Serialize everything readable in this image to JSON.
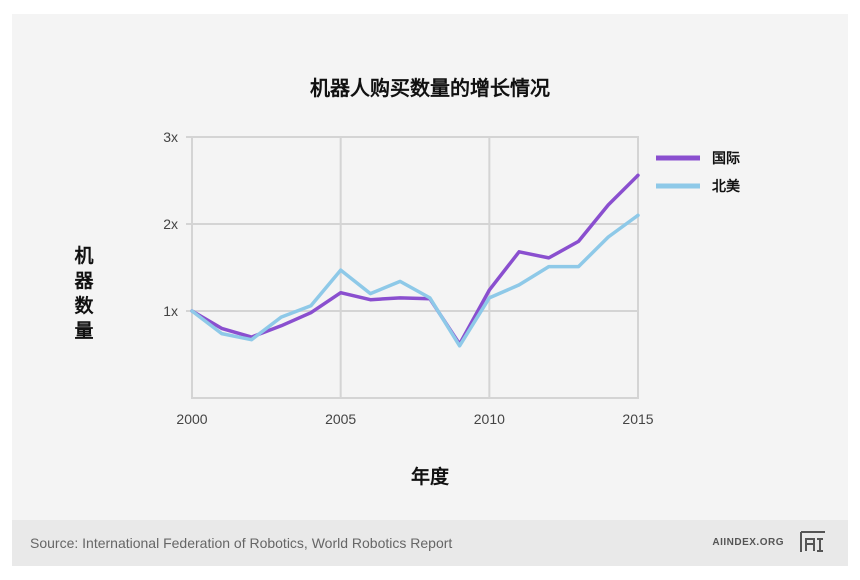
{
  "chart_data": {
    "type": "line",
    "title": "机器人购买数量的增长情况",
    "xlabel": "年度",
    "ylabel": "机器数量",
    "x": [
      2000,
      2001,
      2002,
      2003,
      2004,
      2005,
      2006,
      2007,
      2008,
      2009,
      2010,
      2011,
      2012,
      2013,
      2014,
      2015
    ],
    "xticks": [
      2000,
      2005,
      2010,
      2015
    ],
    "xtick_labels": [
      "2000",
      "2005",
      "2010",
      "2015"
    ],
    "xlim": [
      2000,
      2015
    ],
    "yticks": [
      1,
      2,
      3
    ],
    "ytick_labels": [
      "1x",
      "2x",
      "3x"
    ],
    "ylim": [
      0,
      3
    ],
    "grid": true,
    "legend_position": "right",
    "series": [
      {
        "name": "国际",
        "color": "#8a4fcf",
        "values": [
          1.0,
          0.8,
          0.7,
          0.83,
          0.98,
          1.21,
          1.13,
          1.15,
          1.14,
          0.62,
          1.24,
          1.68,
          1.61,
          1.8,
          2.22,
          2.56
        ]
      },
      {
        "name": "北美",
        "color": "#8ec9e8",
        "values": [
          1.0,
          0.74,
          0.67,
          0.93,
          1.06,
          1.47,
          1.2,
          1.34,
          1.15,
          0.6,
          1.15,
          1.3,
          1.51,
          1.51,
          1.85,
          2.1
        ]
      }
    ]
  },
  "footer": {
    "source": "Source: International Federation of Robotics, World Robotics Report",
    "brand": "AIINDEX.ORG",
    "logo_text": "AI"
  }
}
